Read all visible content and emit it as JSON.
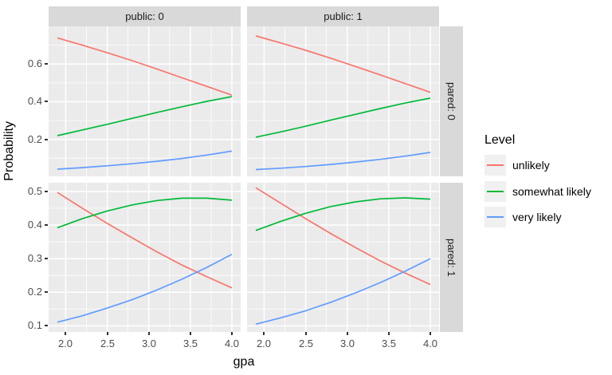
{
  "chart_data": {
    "type": "line",
    "title": "",
    "xlabel": "gpa",
    "ylabel": "Probability",
    "grid": true,
    "legend": {
      "title": "Level",
      "position": "right"
    },
    "facets": {
      "cols": [
        "public: 0",
        "public: 1"
      ],
      "rows": [
        "pared: 0",
        "pared: 1"
      ]
    },
    "x": [
      1.9,
      2.2,
      2.5,
      2.8,
      3.1,
      3.4,
      3.7,
      4.0
    ],
    "xlim": [
      1.795,
      4.105
    ],
    "x_ticks": [
      2.0,
      2.5,
      3.0,
      3.5,
      4.0
    ],
    "x_minor_ticks": [
      2.25,
      2.75,
      3.25,
      3.75
    ],
    "row_scales": [
      {
        "ylim": [
          0.004,
          0.8
        ],
        "y_ticks": [
          0.2,
          0.4,
          0.6
        ],
        "y_minor_ticks": [
          0.1,
          0.3,
          0.5,
          0.7
        ]
      },
      {
        "ylim": [
          0.082,
          0.526
        ],
        "y_ticks": [
          0.1,
          0.2,
          0.3,
          0.4,
          0.5
        ],
        "y_minor_ticks": [
          0.15,
          0.25,
          0.35,
          0.45
        ]
      }
    ],
    "series": [
      {
        "key": "unlikely",
        "label": "unlikely",
        "color": "#F8766D"
      },
      {
        "key": "somewhat_likely",
        "label": "somewhat likely",
        "color": "#00BA38"
      },
      {
        "key": "very_likely",
        "label": "very likely",
        "color": "#619CFF"
      }
    ],
    "panels": [
      {
        "row": 0,
        "col": 0,
        "public": "public: 0",
        "pared": "pared: 0",
        "values": {
          "unlikely": [
            0.738,
            0.7,
            0.66,
            0.618,
            0.573,
            0.527,
            0.481,
            0.435
          ],
          "somewhat_likely": [
            0.22,
            0.25,
            0.28,
            0.312,
            0.343,
            0.373,
            0.402,
            0.427
          ],
          "very_likely": [
            0.042,
            0.05,
            0.06,
            0.071,
            0.084,
            0.099,
            0.117,
            0.138
          ]
        }
      },
      {
        "row": 0,
        "col": 1,
        "public": "public: 1",
        "pared": "pared: 0",
        "values": {
          "unlikely": [
            0.749,
            0.712,
            0.673,
            0.631,
            0.587,
            0.542,
            0.496,
            0.45
          ],
          "somewhat_likely": [
            0.212,
            0.24,
            0.27,
            0.302,
            0.333,
            0.364,
            0.393,
            0.419
          ],
          "very_likely": [
            0.04,
            0.047,
            0.056,
            0.067,
            0.08,
            0.094,
            0.111,
            0.131
          ]
        }
      },
      {
        "row": 1,
        "col": 0,
        "public": "public: 0",
        "pared": "pared: 1",
        "values": {
          "unlikely": [
            0.497,
            0.45,
            0.405,
            0.362,
            0.32,
            0.281,
            0.246,
            0.213
          ],
          "somewhat_likely": [
            0.392,
            0.419,
            0.442,
            0.46,
            0.473,
            0.48,
            0.48,
            0.474
          ],
          "very_likely": [
            0.111,
            0.13,
            0.153,
            0.178,
            0.207,
            0.239,
            0.274,
            0.313
          ]
        }
      },
      {
        "row": 1,
        "col": 1,
        "public": "public: 1",
        "pared": "pared: 1",
        "values": {
          "unlikely": [
            0.511,
            0.465,
            0.419,
            0.375,
            0.333,
            0.293,
            0.257,
            0.223
          ],
          "somewhat_likely": [
            0.384,
            0.411,
            0.435,
            0.455,
            0.469,
            0.478,
            0.481,
            0.477
          ],
          "very_likely": [
            0.105,
            0.124,
            0.145,
            0.17,
            0.198,
            0.229,
            0.263,
            0.3
          ]
        }
      }
    ]
  }
}
